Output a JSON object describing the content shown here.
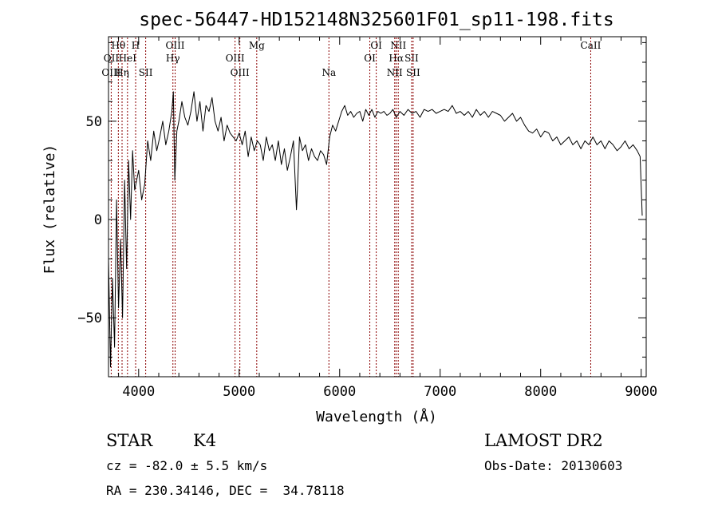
{
  "chart_data": {
    "type": "line",
    "title": "spec-56447-HD152148N325601F01_sp11-198.fits",
    "xlabel": "Wavelength (Å)",
    "ylabel": "Flux (relative)",
    "xlim": [
      3700,
      9050
    ],
    "ylim": [
      -80,
      93
    ],
    "x_ticks": [
      {
        "value": 4000,
        "label": "4000"
      },
      {
        "value": 5000,
        "label": "5000"
      },
      {
        "value": 6000,
        "label": "6000"
      },
      {
        "value": 7000,
        "label": "7000"
      },
      {
        "value": 8000,
        "label": "8000"
      },
      {
        "value": 9000,
        "label": "9000"
      }
    ],
    "y_ticks": [
      {
        "value": 50,
        "label": "50"
      },
      {
        "value": 0,
        "label": "0"
      },
      {
        "value": -50,
        "label": "−50"
      }
    ],
    "x_minor_step": 200,
    "y_minor_step": 10,
    "grid": false,
    "line_color": "#000000",
    "marker_color": "#8b0000",
    "series": [
      {
        "x": [
          3700,
          3720,
          3740,
          3760,
          3780,
          3800,
          3820,
          3840,
          3860,
          3880,
          3900,
          3920,
          3940,
          3960,
          3980,
          4000,
          4030,
          4060,
          4090,
          4120,
          4150,
          4180,
          4210,
          4240,
          4270,
          4300,
          4330,
          4345,
          4360,
          4380,
          4400,
          4430,
          4460,
          4490,
          4520,
          4550,
          4580,
          4610,
          4640,
          4670,
          4700,
          4730,
          4760,
          4790,
          4820,
          4850,
          4880,
          4910,
          4940,
          4970,
          5000,
          5030,
          5060,
          5090,
          5120,
          5150,
          5180,
          5210,
          5240,
          5270,
          5300,
          5330,
          5360,
          5390,
          5420,
          5450,
          5480,
          5510,
          5540,
          5570,
          5580,
          5600,
          5630,
          5660,
          5690,
          5720,
          5750,
          5780,
          5810,
          5840,
          5870,
          5900,
          5930,
          5960,
          5990,
          6020,
          6050,
          6080,
          6110,
          6140,
          6170,
          6200,
          6230,
          6260,
          6290,
          6320,
          6350,
          6380,
          6410,
          6440,
          6470,
          6500,
          6530,
          6563,
          6600,
          6640,
          6680,
          6720,
          6760,
          6800,
          6840,
          6880,
          6920,
          6960,
          7000,
          7040,
          7080,
          7120,
          7160,
          7200,
          7240,
          7280,
          7320,
          7360,
          7400,
          7440,
          7480,
          7520,
          7560,
          7600,
          7640,
          7680,
          7720,
          7760,
          7800,
          7840,
          7880,
          7920,
          7960,
          8000,
          8040,
          8080,
          8120,
          8160,
          8200,
          8240,
          8280,
          8320,
          8360,
          8400,
          8440,
          8480,
          8520,
          8560,
          8600,
          8640,
          8680,
          8720,
          8760,
          8800,
          8840,
          8880,
          8920,
          8960,
          8990,
          9010
        ],
        "y": [
          -20,
          -75,
          -30,
          -65,
          10,
          -45,
          -10,
          -50,
          20,
          -25,
          30,
          0,
          35,
          15,
          20,
          25,
          10,
          18,
          40,
          30,
          45,
          35,
          42,
          50,
          38,
          45,
          55,
          65,
          20,
          45,
          50,
          60,
          52,
          48,
          55,
          65,
          50,
          60,
          45,
          58,
          55,
          62,
          50,
          45,
          52,
          40,
          48,
          44,
          42,
          40,
          44,
          38,
          45,
          32,
          42,
          35,
          40,
          38,
          30,
          42,
          35,
          38,
          30,
          40,
          28,
          36,
          25,
          32,
          40,
          5,
          15,
          42,
          35,
          38,
          30,
          36,
          32,
          30,
          35,
          33,
          28,
          42,
          48,
          45,
          50,
          55,
          58,
          53,
          55,
          52,
          54,
          55,
          50,
          56,
          53,
          56,
          52,
          55,
          54,
          55,
          53,
          54,
          56,
          52,
          55,
          53,
          56,
          54,
          55,
          52,
          56,
          55,
          56,
          54,
          55,
          56,
          55,
          58,
          54,
          55,
          53,
          55,
          52,
          56,
          53,
          55,
          52,
          55,
          54,
          53,
          50,
          52,
          54,
          50,
          52,
          48,
          45,
          44,
          46,
          42,
          45,
          44,
          40,
          42,
          38,
          40,
          42,
          38,
          40,
          36,
          40,
          38,
          42,
          38,
          40,
          36,
          40,
          38,
          35,
          37,
          40,
          36,
          38,
          35,
          32,
          2
        ]
      }
    ],
    "spectral_lines": [
      {
        "label": "Hθ",
        "wavelength": 3798,
        "row": 1
      },
      {
        "label": "OII",
        "wavelength": 3727,
        "row": 2
      },
      {
        "label": "OIII",
        "wavelength": 3727,
        "row": 3
      },
      {
        "label": "HeI",
        "wavelength": 3889,
        "row": 2
      },
      {
        "label": "Hη",
        "wavelength": 3835,
        "row": 3
      },
      {
        "label": "H",
        "wavelength": 3970,
        "row": 1
      },
      {
        "label": "SII",
        "wavelength": 4070,
        "row": 3
      },
      {
        "label": "OIII",
        "wavelength": 4363,
        "row": 1
      },
      {
        "label": "Hγ",
        "wavelength": 4341,
        "row": 2
      },
      {
        "label": "OIII",
        "wavelength": 4959,
        "row": 2
      },
      {
        "label": "OIII",
        "wavelength": 5007,
        "row": 3
      },
      {
        "label": "Mg",
        "wavelength": 5175,
        "row": 1
      },
      {
        "label": "Na",
        "wavelength": 5893,
        "row": 3
      },
      {
        "label": "OI",
        "wavelength": 6364,
        "row": 1
      },
      {
        "label": "OI",
        "wavelength": 6300,
        "row": 2
      },
      {
        "label": "NII",
        "wavelength": 6583,
        "row": 1
      },
      {
        "label": "Hα",
        "wavelength": 6563,
        "row": 2
      },
      {
        "label": "SII",
        "wavelength": 6716,
        "row": 2
      },
      {
        "label": "NII",
        "wavelength": 6548,
        "row": 3
      },
      {
        "label": "SII",
        "wavelength": 6731,
        "row": 3
      },
      {
        "label": "CaII",
        "wavelength": 8498,
        "row": 1
      }
    ]
  },
  "info": {
    "object_class": "STAR",
    "subclass": "K4",
    "survey": "LAMOST DR2",
    "cz": "cz = -82.0 ± 5.5 km/s",
    "obs_date": "Obs-Date: 20130603",
    "coords": "RA = 230.34146, DEC =  34.78118"
  }
}
